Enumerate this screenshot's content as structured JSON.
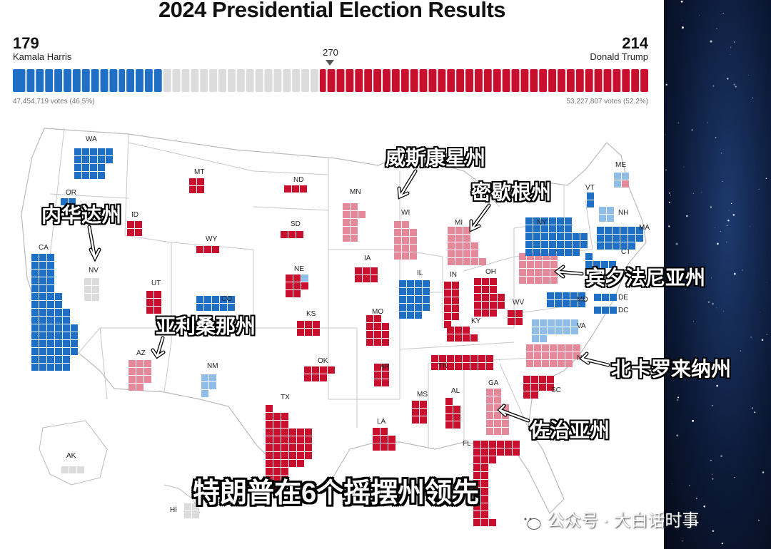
{
  "title": "2024 Presidential Election Results",
  "harris": {
    "ev": "179",
    "name": "Kamala Harris",
    "votes": "47,454,719 votes (46.5%)"
  },
  "trump": {
    "ev": "214",
    "name": "Donald Trump",
    "votes": "53,227,807 votes (52.2%)"
  },
  "threshold": "270",
  "colors": {
    "dem": "#1f6fc5",
    "rep": "#c8102e",
    "dem_lean": "#8fbde6",
    "rep_lean": "#e3899a",
    "pending": "#dcdcdc"
  },
  "states": [
    {
      "abbr": "WA",
      "status": "dem"
    },
    {
      "abbr": "OR",
      "status": "dem"
    },
    {
      "abbr": "CA",
      "status": "dem"
    },
    {
      "abbr": "NV",
      "status": "pending"
    },
    {
      "abbr": "ID",
      "status": "rep"
    },
    {
      "abbr": "MT",
      "status": "rep"
    },
    {
      "abbr": "WY",
      "status": "rep"
    },
    {
      "abbr": "UT",
      "status": "rep"
    },
    {
      "abbr": "CO",
      "status": "dem"
    },
    {
      "abbr": "AZ",
      "status": "rep_lean"
    },
    {
      "abbr": "NM",
      "status": "dem_lean"
    },
    {
      "abbr": "ND",
      "status": "rep"
    },
    {
      "abbr": "SD",
      "status": "rep"
    },
    {
      "abbr": "NE",
      "status": "rep"
    },
    {
      "abbr": "KS",
      "status": "rep"
    },
    {
      "abbr": "OK",
      "status": "rep"
    },
    {
      "abbr": "TX",
      "status": "rep"
    },
    {
      "abbr": "MN",
      "status": "rep_lean"
    },
    {
      "abbr": "IA",
      "status": "rep"
    },
    {
      "abbr": "MO",
      "status": "rep"
    },
    {
      "abbr": "AR",
      "status": "rep"
    },
    {
      "abbr": "LA",
      "status": "rep"
    },
    {
      "abbr": "WI",
      "status": "rep_lean"
    },
    {
      "abbr": "IL",
      "status": "dem"
    },
    {
      "abbr": "MI",
      "status": "rep_lean"
    },
    {
      "abbr": "IN",
      "status": "rep"
    },
    {
      "abbr": "OH",
      "status": "rep"
    },
    {
      "abbr": "KY",
      "status": "rep"
    },
    {
      "abbr": "TN",
      "status": "rep"
    },
    {
      "abbr": "MS",
      "status": "rep"
    },
    {
      "abbr": "AL",
      "status": "rep"
    },
    {
      "abbr": "GA",
      "status": "rep_lean"
    },
    {
      "abbr": "FL",
      "status": "rep"
    },
    {
      "abbr": "SC",
      "status": "rep"
    },
    {
      "abbr": "NC",
      "status": "rep_lean"
    },
    {
      "abbr": "VA",
      "status": "dem_lean"
    },
    {
      "abbr": "WV",
      "status": "rep"
    },
    {
      "abbr": "PA",
      "status": "rep_lean"
    },
    {
      "abbr": "NY",
      "status": "dem"
    },
    {
      "abbr": "MD",
      "status": "dem"
    },
    {
      "abbr": "DE",
      "status": "dem"
    },
    {
      "abbr": "DC",
      "status": "dem"
    },
    {
      "abbr": "CT",
      "status": "dem"
    },
    {
      "abbr": "MA",
      "status": "dem"
    },
    {
      "abbr": "NH",
      "status": "dem_lean"
    },
    {
      "abbr": "VT",
      "status": "dem"
    },
    {
      "abbr": "ME",
      "status": "dem_lean"
    },
    {
      "abbr": "AK",
      "status": "pending"
    },
    {
      "abbr": "HI",
      "status": "pending"
    }
  ],
  "annotations": {
    "nevada": "内华达州",
    "arizona": "亚利桑那州",
    "wisconsin": "威斯康星州",
    "michigan": "密歇根州",
    "pennsylvania": "宾夕法尼亚州",
    "north_carolina": "北卡罗来纳州",
    "georgia": "佐治亚州"
  },
  "caption": "特朗普在6个摇摆州领先",
  "watermark": "公众号 · 大白话时事"
}
